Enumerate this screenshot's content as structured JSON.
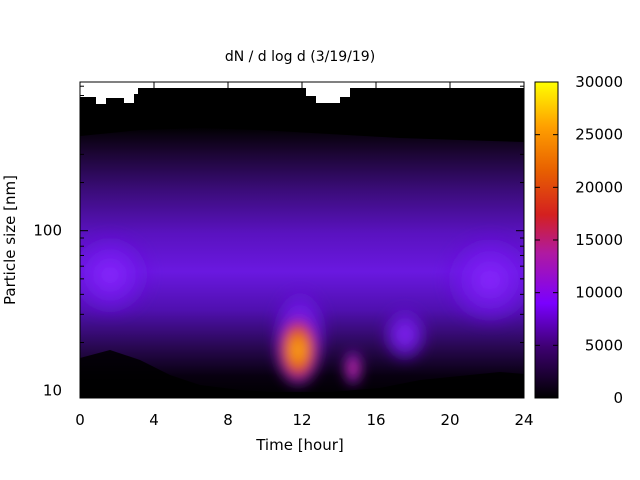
{
  "chart_data": {
    "type": "heatmap",
    "title": "dN / d log d (3/19/19)",
    "xlabel": "Time [hour]",
    "ylabel": "Particle size [nm]",
    "x_range": [
      0,
      24
    ],
    "x_ticks": [
      0,
      4,
      8,
      12,
      16,
      20,
      24
    ],
    "y_scale": "log",
    "y_range": [
      9,
      850
    ],
    "y_ticks": [
      10,
      100
    ],
    "colorbar": {
      "range": [
        0,
        30000
      ],
      "ticks": [
        0,
        5000,
        10000,
        15000,
        20000,
        25000,
        30000
      ],
      "palette": [
        "#000000",
        "#5a00a8",
        "#8a1aff",
        "#c01a6a",
        "#e04a00",
        "#ff9a00",
        "#ffff00"
      ]
    },
    "grid": false,
    "features": [
      {
        "time_hr": 11.8,
        "size_nm": 17,
        "value": 27000
      },
      {
        "time_hr": 14.8,
        "size_nm": 13,
        "value": 13000
      },
      {
        "time_hr": 17.0,
        "size_nm": 22,
        "value": 8500
      },
      {
        "time_hr": 21.5,
        "size_nm": 45,
        "value": 8000
      },
      {
        "time_hr": 0.5,
        "size_nm": 55,
        "value": 7500
      }
    ]
  }
}
